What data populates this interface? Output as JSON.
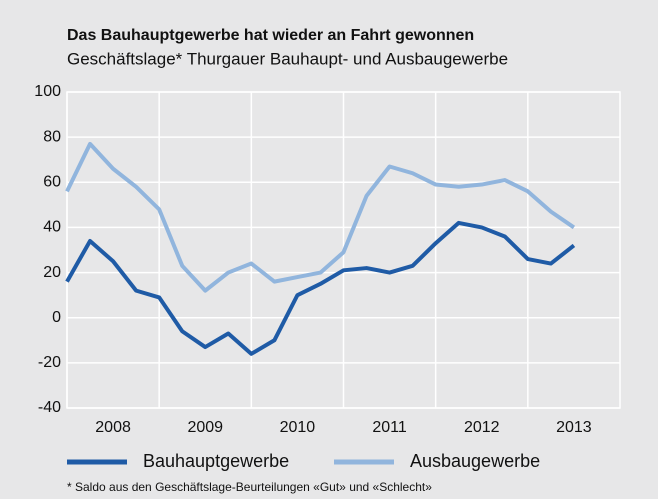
{
  "chart_data": {
    "type": "line",
    "title": "Das Bauhauptgewerbe hat wieder an Fahrt gewonnen",
    "subtitle": "Geschäftslage* Thurgauer Bauhaupt- und Ausbaugewerbe",
    "footnote": "* Saldo aus den Geschäftslage-Beurteilungen «Gut» und «Schlecht»",
    "x": [
      2008,
      2008.25,
      2008.5,
      2008.75,
      2009,
      2009.25,
      2009.5,
      2009.75,
      2010,
      2010.25,
      2010.5,
      2010.75,
      2011,
      2011.25,
      2011.5,
      2011.75,
      2012,
      2012.25,
      2012.5,
      2012.75,
      2013,
      2013.25,
      2013.5
    ],
    "series": [
      {
        "name": "Bauhauptgewerbe",
        "color": "#1f5ba6",
        "values": [
          16,
          34,
          25,
          12,
          9,
          -6,
          -13,
          -7,
          -16,
          -10,
          10,
          15,
          21,
          22,
          20,
          23,
          33,
          42,
          40,
          36,
          26,
          24,
          32
        ]
      },
      {
        "name": "Ausbaugewerbe",
        "color": "#91b5dd",
        "values": [
          56,
          77,
          66,
          58,
          48,
          23,
          12,
          20,
          24,
          16,
          18,
          20,
          29,
          54,
          67,
          64,
          59,
          58,
          59,
          61,
          56,
          47,
          40
        ]
      }
    ],
    "xlim": [
      2008,
      2014
    ],
    "xticks": [
      2008,
      2009,
      2010,
      2011,
      2012,
      2013
    ],
    "ylim": [
      -40,
      100
    ],
    "yticks": [
      -40,
      -20,
      0,
      20,
      40,
      60,
      80,
      100
    ],
    "grid": true
  }
}
